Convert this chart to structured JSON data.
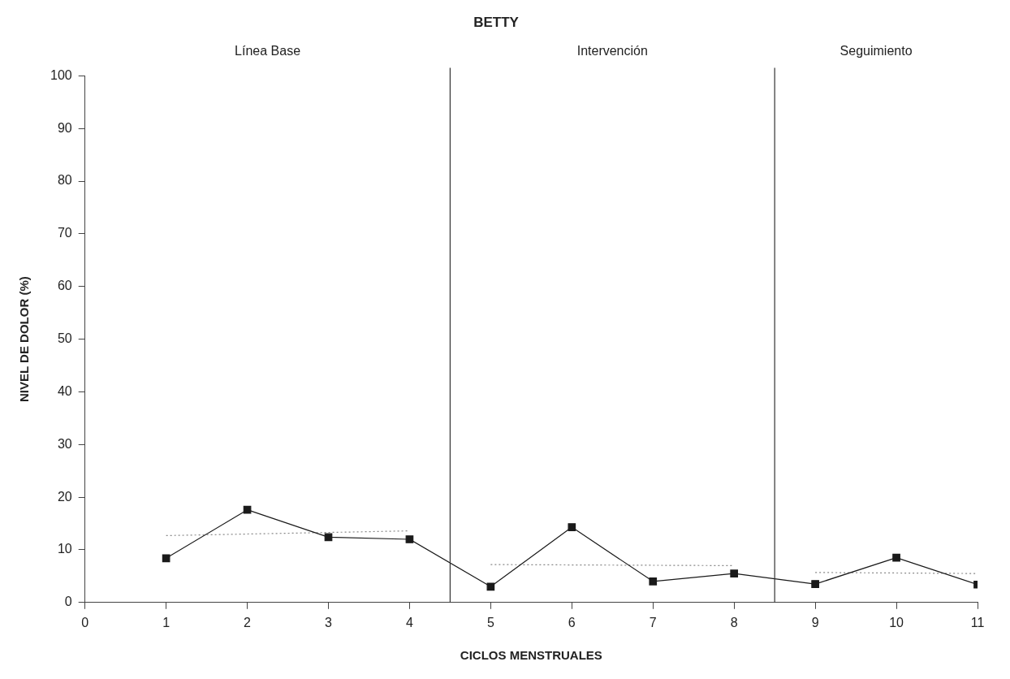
{
  "chart_data": {
    "type": "line",
    "title": "BETTY",
    "xlabel": "CICLOS MENSTRUALES",
    "ylabel": "NIVEL DE DOLOR (%)",
    "xlim": [
      0,
      11
    ],
    "xticks": [
      0,
      1,
      2,
      3,
      4,
      5,
      6,
      7,
      8,
      9,
      10,
      11
    ],
    "ylim": [
      0,
      100
    ],
    "yticks": [
      0,
      10,
      20,
      30,
      40,
      50,
      60,
      70,
      80,
      90,
      100
    ],
    "grid": false,
    "legend": false,
    "series": [
      {
        "color": "#1a1a1a",
        "marker": "square",
        "line_style": "solid",
        "x": [
          1,
          2,
          3,
          4,
          5,
          6,
          7,
          8,
          9,
          10,
          11
        ],
        "values": [
          8.4,
          17.6,
          12.4,
          12.0,
          3.0,
          14.3,
          4.0,
          5.5,
          3.5,
          8.5,
          3.4
        ]
      },
      {
        "color": "#888888",
        "marker": "none",
        "line_style": "dotted",
        "x": [
          1,
          4
        ],
        "values": [
          12.7,
          13.6
        ]
      },
      {
        "color": "#888888",
        "marker": "none",
        "line_style": "dotted",
        "x": [
          5,
          8
        ],
        "values": [
          7.2,
          7.0
        ]
      },
      {
        "color": "#888888",
        "marker": "none",
        "line_style": "dotted",
        "x": [
          9,
          11
        ],
        "values": [
          5.7,
          5.5
        ]
      }
    ],
    "ref_lines": [
      {
        "axis": "x",
        "value": 4.5,
        "color": "#333333"
      },
      {
        "axis": "x",
        "value": 8.5,
        "color": "#333333"
      }
    ],
    "annotations": [
      "Línea Base",
      "Intervención",
      "Seguimiento"
    ]
  }
}
